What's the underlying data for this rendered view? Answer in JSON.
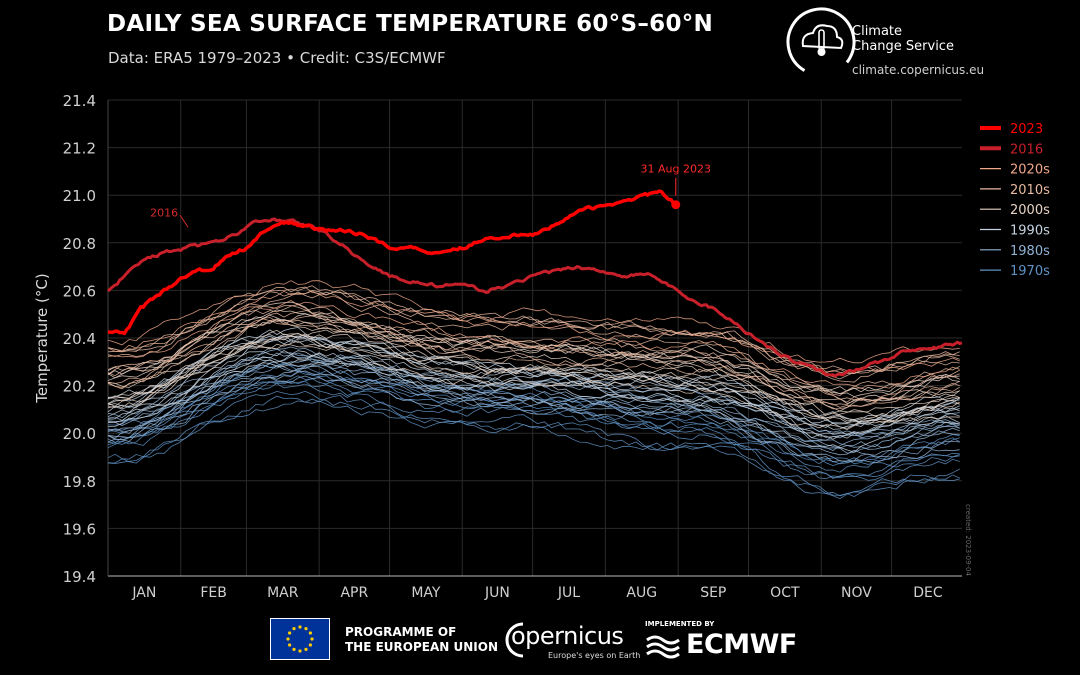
{
  "header": {
    "title": "DAILY SEA SURFACE TEMPERATURE 60°S–60°N",
    "subtitle": "Data: ERA5 1979–2023 • Credit: C3S/ECMWF"
  },
  "brand": {
    "c3s_line1": "Climate",
    "c3s_line2": "Change Service",
    "c3s_url": "climate.copernicus.eu",
    "eu_line1": "PROGRAMME OF",
    "eu_line2": "THE EUROPEAN UNION",
    "copernicus_name": "opernicus",
    "copernicus_tagline": "Europe's eyes on Earth",
    "ecmwf_implemented": "IMPLEMENTED BY",
    "ecmwf_name": "ECMWF"
  },
  "chart_data": {
    "type": "line",
    "title": "DAILY SEA SURFACE TEMPERATURE 60°S–60°N",
    "xlabel": "",
    "ylabel": "Temperature (°C)",
    "ylim": [
      19.4,
      21.4
    ],
    "yticks": [
      19.4,
      19.6,
      19.8,
      20.0,
      20.2,
      20.4,
      20.6,
      20.8,
      21.0,
      21.2,
      21.4
    ],
    "months": [
      "JAN",
      "FEB",
      "MAR",
      "APR",
      "MAY",
      "JUN",
      "JUL",
      "AUG",
      "SEP",
      "OCT",
      "NOV",
      "DEC"
    ],
    "grid": true,
    "legend_position": "right",
    "watermark": "created: 2023-09-04",
    "annotations": [
      {
        "text": "2016",
        "x_day": 36,
        "y": 20.84,
        "color": "#d42a2a"
      },
      {
        "text": "31 Aug 2023",
        "x_day": 243,
        "y": 20.96,
        "color": "#ff2a2a"
      }
    ],
    "legend": [
      {
        "name": "2023",
        "color": "#ff0000"
      },
      {
        "name": "2016",
        "color": "#c8202a"
      },
      {
        "name": "2020s",
        "color": "#f0a88a"
      },
      {
        "name": "2010s",
        "color": "#e8b9a0"
      },
      {
        "name": "2000s",
        "color": "#e6d2c4"
      },
      {
        "name": "1990s",
        "color": "#c4d2e0"
      },
      {
        "name": "1980s",
        "color": "#8fb2d4"
      },
      {
        "name": "1970s",
        "color": "#5f92c4"
      }
    ],
    "series_2023": {
      "name": "2023",
      "x_day": [
        1,
        8,
        15,
        22,
        32,
        40,
        46,
        52,
        60,
        66,
        72,
        80,
        90,
        100,
        110,
        121,
        130,
        140,
        152,
        162,
        172,
        182,
        192,
        202,
        212,
        222,
        230,
        236,
        240,
        243
      ],
      "y": [
        20.43,
        20.42,
        20.52,
        20.58,
        20.65,
        20.68,
        20.7,
        20.74,
        20.78,
        20.84,
        20.88,
        20.88,
        20.86,
        20.85,
        20.84,
        20.78,
        20.78,
        20.76,
        20.78,
        20.82,
        20.83,
        20.83,
        20.88,
        20.94,
        20.95,
        20.98,
        21.0,
        21.01,
        20.99,
        20.96
      ]
    },
    "series_2016": {
      "name": "2016",
      "x_day": [
        1,
        8,
        15,
        25,
        35,
        45,
        55,
        62,
        70,
        80,
        90,
        100,
        110,
        121,
        130,
        140,
        152,
        162,
        172,
        182,
        192,
        202,
        212,
        222,
        232,
        243,
        250,
        260,
        270,
        280,
        290,
        300,
        310,
        320,
        330,
        340,
        350,
        365
      ],
      "y": [
        20.6,
        20.66,
        20.72,
        20.76,
        20.78,
        20.8,
        20.83,
        20.88,
        20.9,
        20.89,
        20.86,
        20.8,
        20.72,
        20.66,
        20.64,
        20.62,
        20.62,
        20.6,
        20.62,
        20.66,
        20.68,
        20.7,
        20.68,
        20.66,
        20.67,
        20.6,
        20.56,
        20.52,
        20.45,
        20.38,
        20.32,
        20.28,
        20.24,
        20.27,
        20.3,
        20.34,
        20.35,
        20.38
      ]
    },
    "climatology_bands": [
      {
        "name": "1970s",
        "jan": 19.95,
        "mar": 20.2,
        "jun": 20.1,
        "sep": 20.0,
        "nov": 19.82,
        "dec": 19.9
      },
      {
        "name": "1980s",
        "jan": 20.0,
        "mar": 20.28,
        "jun": 20.15,
        "sep": 20.1,
        "nov": 19.92,
        "dec": 20.0
      },
      {
        "name": "1990s",
        "jan": 20.08,
        "mar": 20.35,
        "jun": 20.22,
        "sep": 20.17,
        "nov": 20.0,
        "dec": 20.08
      },
      {
        "name": "2000s",
        "jan": 20.18,
        "mar": 20.44,
        "jun": 20.3,
        "sep": 20.26,
        "nov": 20.1,
        "dec": 20.16
      },
      {
        "name": "2010s",
        "jan": 20.27,
        "mar": 20.52,
        "jun": 20.4,
        "sep": 20.36,
        "nov": 20.18,
        "dec": 20.26
      },
      {
        "name": "2020s",
        "jan": 20.36,
        "mar": 20.6,
        "jun": 20.46,
        "sep": 20.42,
        "nov": 20.25,
        "dec": 20.32
      }
    ]
  }
}
